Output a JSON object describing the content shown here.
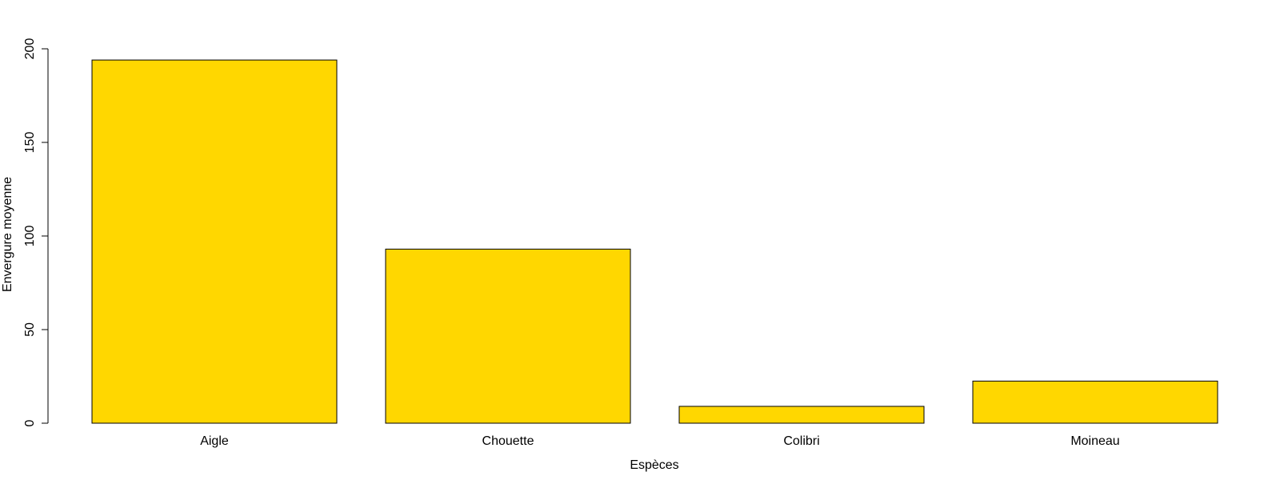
{
  "chart_data": {
    "type": "bar",
    "categories": [
      "Aigle",
      "Chouette",
      "Colibri",
      "Moineau"
    ],
    "values": [
      194,
      93,
      9,
      22.5
    ],
    "title": "",
    "xlabel": "Espèces",
    "ylabel": "Envergure moyenne",
    "ylim": [
      0,
      200
    ],
    "yticks": [
      0,
      50,
      100,
      150,
      200
    ],
    "grid": false,
    "legend": "none",
    "bar_color": "#FFD700",
    "border_color": "#000000"
  }
}
